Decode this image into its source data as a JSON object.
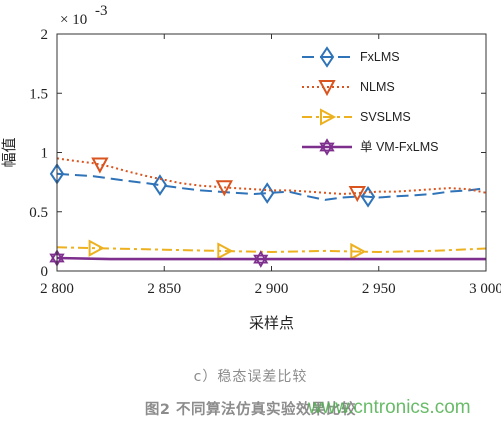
{
  "chart_data": {
    "type": "line",
    "title": "",
    "xlabel": "采样点",
    "ylabel": "幅值",
    "y_multiplier": "× 10",
    "y_exponent": "-3",
    "xlim": [
      2800,
      3000
    ],
    "ylim": [
      0,
      2
    ],
    "xticks": [
      2800,
      2850,
      2900,
      2950,
      3000
    ],
    "xtick_labels": [
      "2 800",
      "2 850",
      "2 900",
      "2 950",
      "3 000"
    ],
    "yticks": [
      0,
      0.5,
      1,
      1.5,
      2
    ],
    "ytick_labels": [
      "0",
      "0.5",
      "1",
      "1.5",
      "2"
    ],
    "grid": false,
    "legend_position": "top-right",
    "series": [
      {
        "name": "FxLMS",
        "color": "#2f73b8",
        "dash": "12 6",
        "marker": "diamond",
        "x": [
          2800,
          2808,
          2817,
          2825,
          2833,
          2842,
          2850,
          2858,
          2867,
          2875,
          2883,
          2892,
          2900,
          2908,
          2917,
          2925,
          2933,
          2942,
          2950,
          2958,
          2967,
          2975,
          2983,
          2992,
          3000
        ],
        "y": [
          0.82,
          0.81,
          0.8,
          0.78,
          0.76,
          0.74,
          0.72,
          0.7,
          0.68,
          0.67,
          0.66,
          0.65,
          0.66,
          0.67,
          0.63,
          0.6,
          0.62,
          0.63,
          0.62,
          0.63,
          0.64,
          0.65,
          0.67,
          0.68,
          0.7
        ],
        "marker_x": [
          2800,
          2848,
          2898,
          2945
        ]
      },
      {
        "name": "NLMS",
        "color": "#d9541e",
        "dash": "2 3",
        "marker": "triangle-down",
        "x": [
          2800,
          2808,
          2817,
          2825,
          2833,
          2842,
          2850,
          2858,
          2867,
          2875,
          2883,
          2892,
          2900,
          2908,
          2917,
          2925,
          2933,
          2942,
          2950,
          2958,
          2967,
          2975,
          2983,
          2992,
          3000
        ],
        "y": [
          0.95,
          0.93,
          0.91,
          0.88,
          0.84,
          0.8,
          0.77,
          0.74,
          0.72,
          0.71,
          0.7,
          0.69,
          0.68,
          0.68,
          0.67,
          0.66,
          0.65,
          0.66,
          0.67,
          0.67,
          0.68,
          0.69,
          0.7,
          0.69,
          0.66
        ],
        "marker_x": [
          2820,
          2878,
          2940
        ]
      },
      {
        "name": "SVSLMS",
        "color": "#edb120",
        "dash": "10 4 3 4",
        "marker": "triangle-right",
        "x": [
          2800,
          2825,
          2850,
          2875,
          2900,
          2925,
          2950,
          2975,
          3000
        ],
        "y": [
          0.2,
          0.19,
          0.18,
          0.17,
          0.16,
          0.17,
          0.16,
          0.17,
          0.19
        ],
        "marker_x": [
          2818,
          2878,
          2940
        ]
      },
      {
        "name": "单 VM-FxLMS",
        "color": "#7e2f8e",
        "dash": "",
        "marker": "hexagram",
        "x": [
          2800,
          2825,
          2850,
          2875,
          2900,
          2925,
          2950,
          2975,
          3000
        ],
        "y": [
          0.11,
          0.1,
          0.1,
          0.1,
          0.1,
          0.1,
          0.1,
          0.1,
          0.1
        ],
        "marker_x": [
          2800,
          2895
        ]
      }
    ]
  },
  "captions": {
    "sub": "c）稳态误差比较",
    "figure": "图2 不同算法仿真实验效果比较",
    "watermark": "www.cntronics.com"
  }
}
